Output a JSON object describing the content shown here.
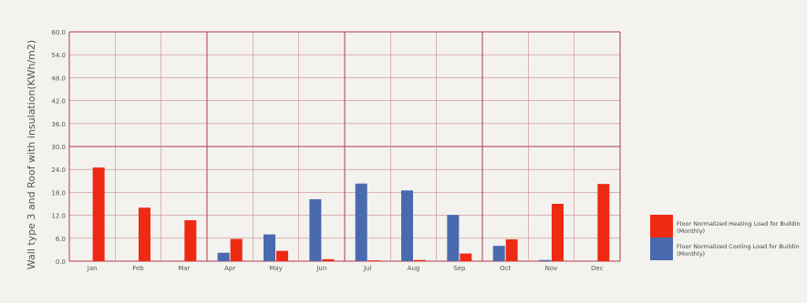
{
  "chart_data": {
    "type": "bar",
    "title": "",
    "xlabel": "",
    "ylabel": "Wall type 3 and Roof with insulation(KWh/m2)",
    "categories": [
      "Jan",
      "Feb",
      "Mar",
      "Apr",
      "May",
      "Jun",
      "Jul",
      "Aug",
      "Sep",
      "Oct",
      "Nov",
      "Dec"
    ],
    "ylim": [
      0,
      60
    ],
    "yticks": [
      "0.0",
      "6.0",
      "12.0",
      "18.0",
      "24.0",
      "30.0",
      "36.0",
      "42.0",
      "48.0",
      "54.0",
      "60.0"
    ],
    "grid": true,
    "legend_position": "right",
    "series": [
      {
        "name": "Floor Normalized Cooling Load for Buildin (Monthly)",
        "legend_line1": "Floor Normalized Cooling Load for Buildin",
        "legend_line2": "(Monthly)",
        "color": "#4a6aaf",
        "values": [
          0,
          0,
          0,
          2.2,
          7.0,
          16.2,
          20.3,
          18.5,
          12.1,
          4.0,
          0.3,
          0
        ]
      },
      {
        "name": "Floor Normalized Heating Load for Buildin (Monthly)",
        "legend_line1": "Floor Normalized Heating Load for Buildin",
        "legend_line2": "(Monthly)",
        "color": "#ee2a12",
        "values": [
          24.5,
          14.0,
          10.7,
          5.8,
          2.7,
          0.5,
          0.2,
          0.3,
          2.0,
          5.7,
          15.0,
          20.2
        ]
      }
    ],
    "colors": {
      "grid": "#c88a8a",
      "grid_major": "#b23a4a",
      "axis_text": "#555555",
      "legend_text": "#444444"
    }
  }
}
